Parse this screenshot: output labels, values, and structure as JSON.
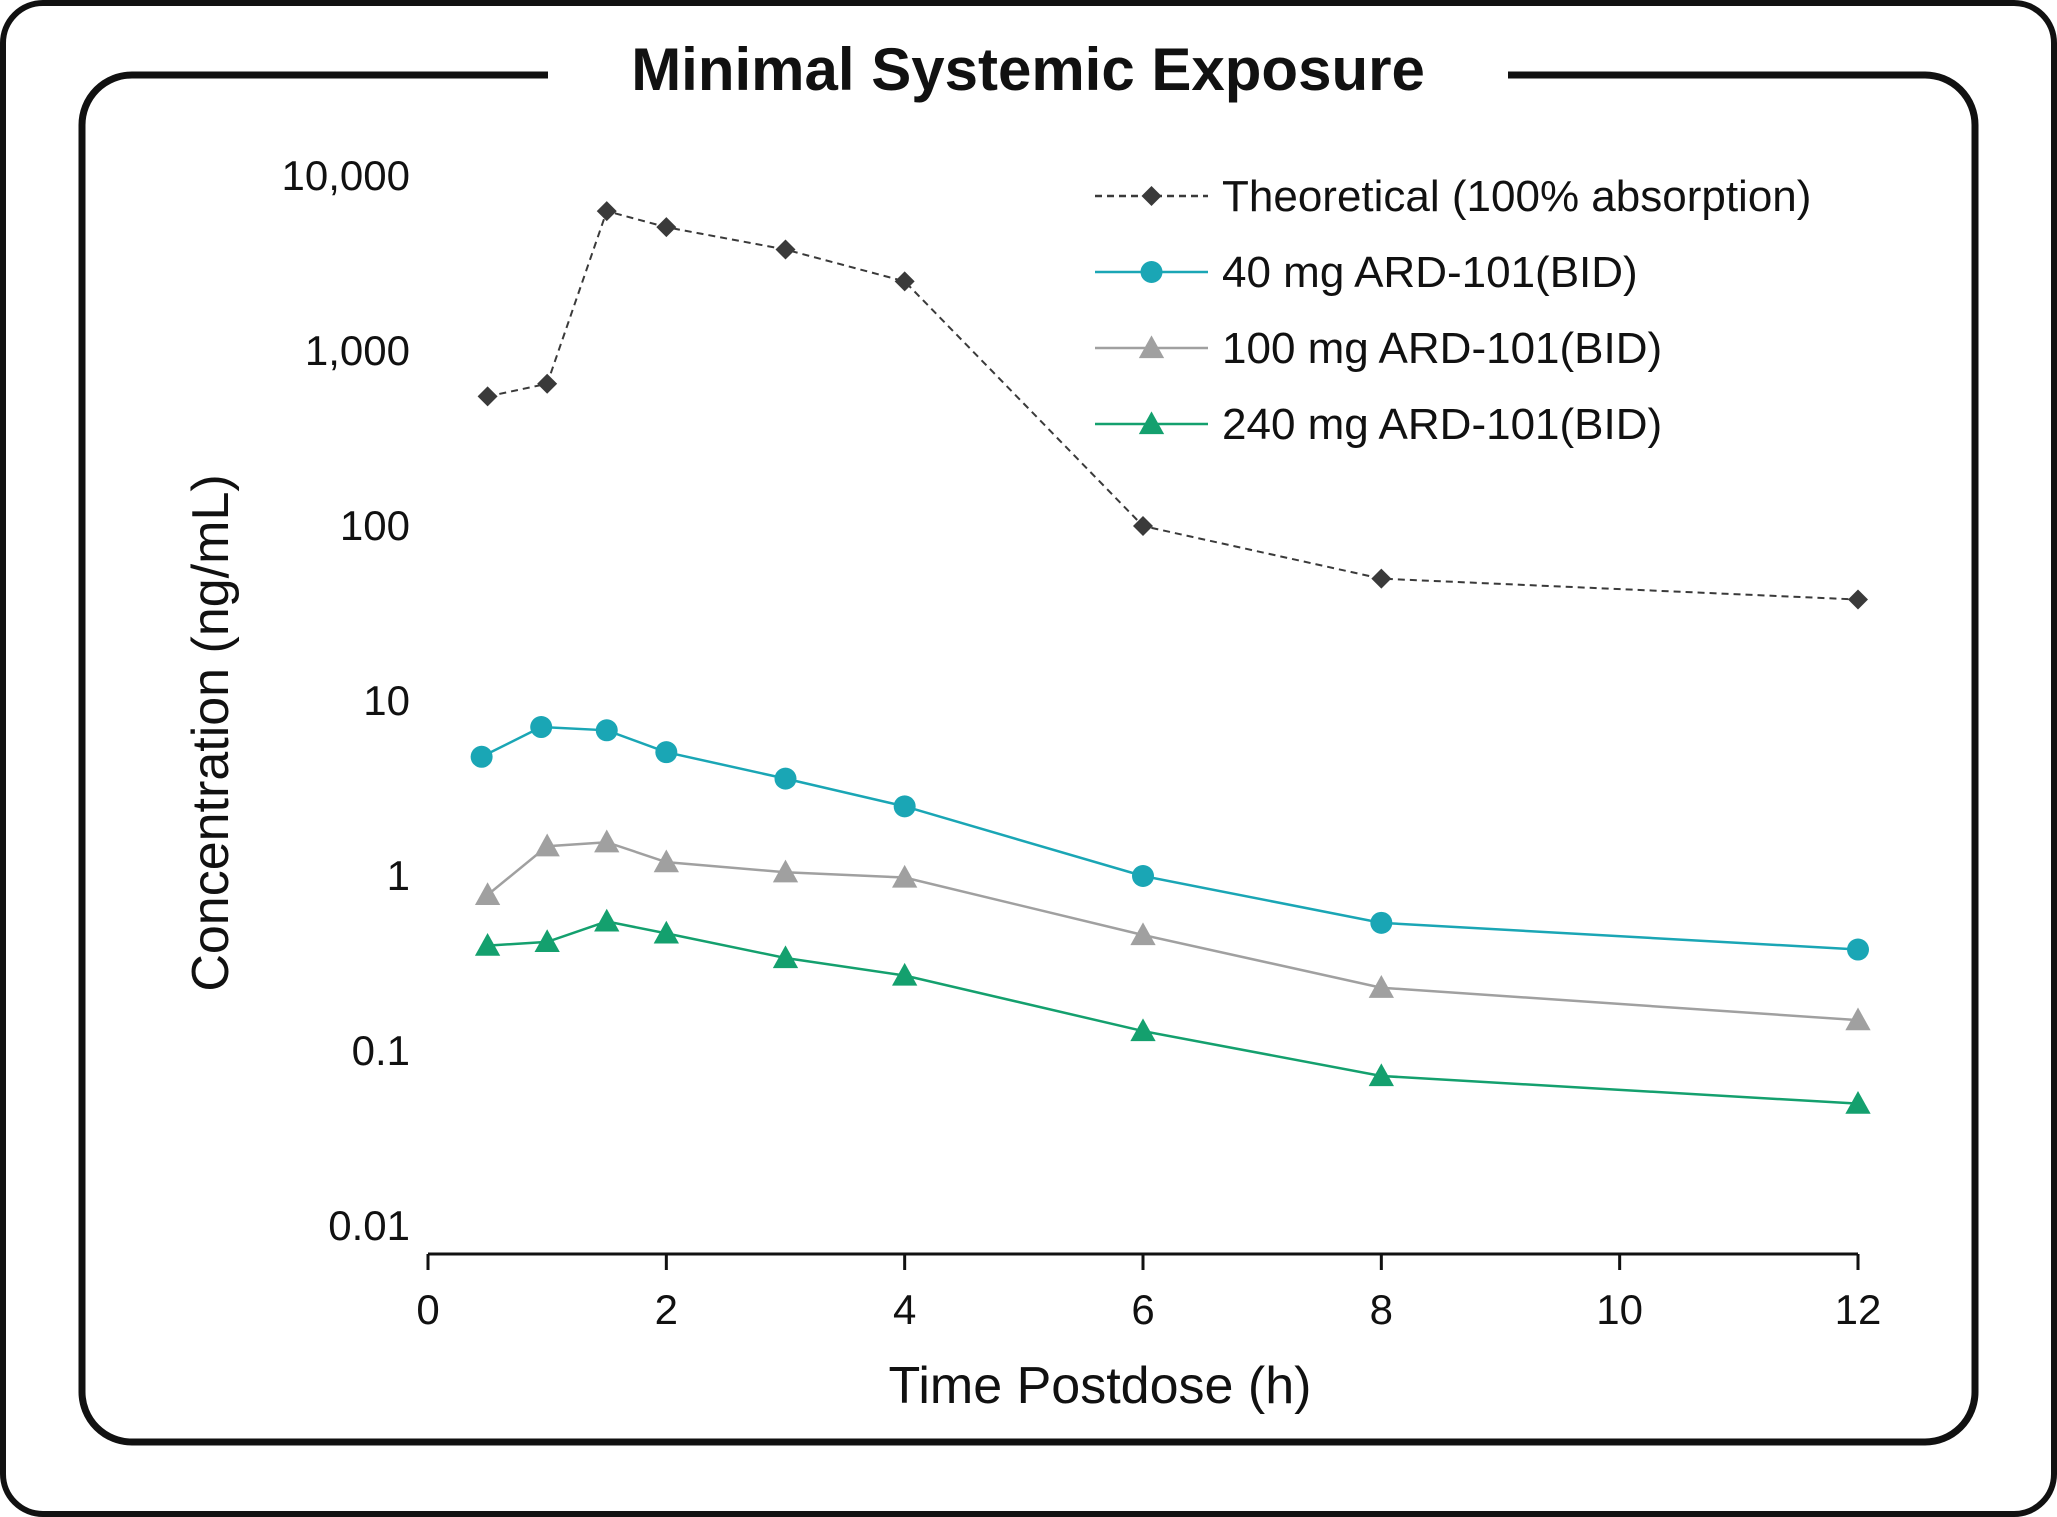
{
  "chart_data": {
    "type": "line",
    "title": "Minimal Systemic Exposure",
    "xlabel": "Time Postdose (h)",
    "ylabel": "Concentration (ng/mL)",
    "xlim": [
      0,
      12
    ],
    "ylim": [
      0.01,
      10000
    ],
    "yscale": "log",
    "x_ticks": [
      0,
      2,
      4,
      6,
      8,
      10,
      12
    ],
    "x_tick_labels": [
      "0",
      "2",
      "4",
      "6",
      "8",
      "10",
      "12"
    ],
    "y_ticks": [
      10000,
      1000,
      100,
      10,
      1,
      0.1,
      0.01
    ],
    "y_tick_labels": [
      "10,000",
      "1,000",
      "100",
      "10",
      "1",
      "0.1",
      "0.01"
    ],
    "grid": false,
    "legend_position": "top-right",
    "series": [
      {
        "name": "Theoretical (100% absorption)",
        "color": "#3a3a3a",
        "marker": "diamond",
        "line_style": "dashed",
        "x": [
          0.5,
          1,
          1.5,
          2,
          3,
          4,
          6,
          8,
          12
        ],
        "y": [
          550,
          650,
          6300,
          5100,
          3800,
          2500,
          100,
          50,
          38
        ]
      },
      {
        "name": "40 mg ARD-101(BID)",
        "color": "#1aa6b5",
        "marker": "circle",
        "line_style": "solid",
        "x": [
          0.45,
          0.95,
          1.5,
          2,
          3,
          4,
          6,
          8,
          12
        ],
        "y": [
          4.8,
          7.1,
          6.8,
          5.1,
          3.6,
          2.5,
          1.0,
          0.54,
          0.38
        ]
      },
      {
        "name": "100 mg ARD-101(BID)",
        "color": "#a0a0a0",
        "marker": "triangle",
        "line_style": "solid",
        "x": [
          0.5,
          1,
          1.5,
          2,
          3,
          4,
          6,
          8,
          12
        ],
        "y": [
          0.78,
          1.48,
          1.56,
          1.2,
          1.05,
          0.98,
          0.46,
          0.23,
          0.15
        ]
      },
      {
        "name": "240 mg ARD-101(BID)",
        "color": "#14a06e",
        "marker": "triangle",
        "line_style": "solid",
        "x": [
          0.5,
          1,
          1.5,
          2,
          3,
          4,
          6,
          8,
          12
        ],
        "y": [
          0.4,
          0.42,
          0.55,
          0.47,
          0.34,
          0.27,
          0.13,
          0.072,
          0.05
        ]
      }
    ]
  }
}
